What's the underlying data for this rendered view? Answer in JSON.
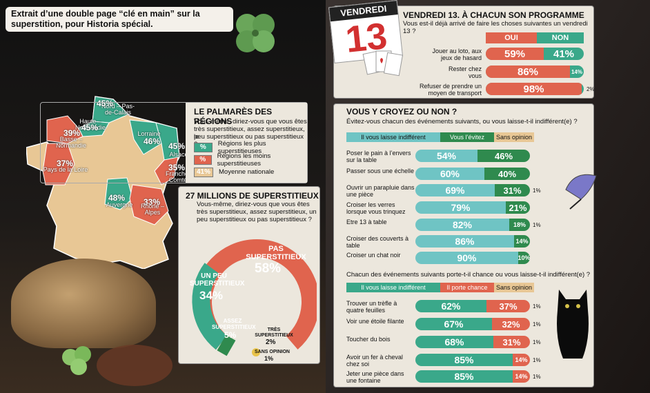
{
  "caption": {
    "line1": "Extrait d’une double page “clé en main” sur la",
    "line2": "superstition, pour Historia spécial."
  },
  "regions": {
    "title": "LE PALMARÈS DES RÉGIONS",
    "subtitle1": "Vous-même, diriez-vous que vous êtes",
    "subtitle2": "très superstitieux, assez superstitieux, le",
    "subtitle3": "peu superstitieux ou pas superstitieux ?",
    "legend": [
      {
        "swatch": "%",
        "label": "Régions les plus superstitieuses",
        "color": "#3aa88a"
      },
      {
        "swatch": "%",
        "label": "Régions les moins superstitieuses",
        "color": "#e0644e"
      },
      {
        "swatch": "41%",
        "label": "Moyenne nationale",
        "color": "#e8c795"
      }
    ],
    "items": [
      {
        "name": "Nord – Pas-de-Calais",
        "pct": "45%"
      },
      {
        "name": "Haute – Normandie",
        "pct": "45%"
      },
      {
        "name": "Basse – Normandie",
        "pct": "39%"
      },
      {
        "name": "Lorraine",
        "pct": "46%"
      },
      {
        "name": "Alsace",
        "pct": "45%"
      },
      {
        "name": "Pays de la Loire",
        "pct": "37%"
      },
      {
        "name": "Franche-Comté",
        "pct": "35%"
      },
      {
        "name": "Auvergne",
        "pct": "48%"
      },
      {
        "name": "Rhône – Alpes",
        "pct": "33%"
      }
    ]
  },
  "millions": {
    "title": "27 MILLIONS DE SUPERSTITIEUX",
    "subtitle1": "Vous-même, diriez-vous que vous êtes",
    "subtitle2": "très superstitieux, assez superstitieux, un",
    "subtitle3": "peu superstitieux ou pas superstitieux ?",
    "pas_label": "PAS SUPERSTITIEUX",
    "pas_pct": "58%",
    "peu_label": "UN PEU SUPERSTITIEUX",
    "peu_pct": "34%",
    "assez_label": "ASSEZ SUPERSTITIEUX",
    "assez_pct": "5%",
    "tres_label": "TRÈS SUPERSTITIEUX",
    "tres_pct": "2%",
    "sans_label": "SANS OPINION",
    "sans_pct": "1%"
  },
  "calendar": {
    "day": "VENDREDI",
    "num": "13"
  },
  "v13": {
    "title": "VENDREDI 13. À CHACUN SON PROGRAMME",
    "subtitle": "Vous est-il déjà arrivé de faire les choses suivantes un vendredi 13 ?",
    "oui": "OUI",
    "non": "NON",
    "rows": [
      {
        "label1": "Jouer au loto, aux",
        "label2": "jeux de hasard",
        "oui": "59%",
        "non": "41%",
        "oui_v": 59
      },
      {
        "label1": "Rester chez",
        "label2": "vous",
        "oui": "86%",
        "non": "14%",
        "oui_v": 86
      },
      {
        "label1": "Refuser de prendre un",
        "label2": "moyen de transport",
        "oui": "98%",
        "non": "2%",
        "oui_v": 98
      }
    ]
  },
  "croyez": {
    "title": "VOUS Y CROYEZ OU NON ?",
    "subtitle": "Évitez-vous chacun des événements  suivants, ou vous laisse-t-il indifférent(e) ?",
    "h1": "Il vous laisse indifférent",
    "h2": "Vous l’évitez",
    "h3": "Sans opinion",
    "rows": [
      {
        "label1": "Poser le pain à l’envers",
        "label2": "sur la table",
        "a": "54%",
        "b": "46%",
        "c": "",
        "av": 54,
        "bv": 46
      },
      {
        "label1": "Passer sous une échelle",
        "label2": "",
        "a": "60%",
        "b": "40%",
        "c": "",
        "av": 60,
        "bv": 40
      },
      {
        "label1": "Ouvrir un parapluie dans",
        "label2": "une pièce",
        "a": "69%",
        "b": "31%",
        "c": "1%",
        "av": 69,
        "bv": 31
      },
      {
        "label1": "Croiser les verres",
        "label2": "lorsque vous trinquez",
        "a": "79%",
        "b": "21%",
        "c": "",
        "av": 79,
        "bv": 21
      },
      {
        "label1": "Etre 13 à table",
        "label2": "",
        "a": "82%",
        "b": "18%",
        "c": "1%",
        "av": 82,
        "bv": 18
      },
      {
        "label1": "Croiser des couverts à",
        "label2": "table",
        "a": "86%",
        "b": "14%",
        "c": "",
        "av": 86,
        "bv": 14
      },
      {
        "label1": "Croiser un chat noir",
        "label2": "",
        "a": "90%",
        "b": "10%",
        "c": "",
        "av": 90,
        "bv": 10
      }
    ],
    "subtitle2": "Chacun des événements suivants porte-t-il chance ou vous laisse-t-il indifférent(e) ?",
    "g1": "Il vous laisse indifférent",
    "g2": "Il porte chance",
    "g3": "Sans opinion",
    "rows2": [
      {
        "label1": "Trouver un trèfle à",
        "label2": "quatre feuilles",
        "a": "62%",
        "b": "37%",
        "c": "1%",
        "av": 62,
        "bv": 37
      },
      {
        "label1": "Voir une étoile filante",
        "label2": "",
        "a": "67%",
        "b": "32%",
        "c": "1%",
        "av": 67,
        "bv": 32
      },
      {
        "label1": "Toucher du bois",
        "label2": "",
        "a": "68%",
        "b": "31%",
        "c": "1%",
        "av": 68,
        "bv": 31
      },
      {
        "label1": "Avoir un fer à cheval",
        "label2": "chez soi",
        "a": "85%",
        "b": "14%",
        "c": "1%",
        "av": 85,
        "bv": 14
      },
      {
        "label1": "Jeter une pièce dans",
        "label2": "une fontaine",
        "a": "85%",
        "b": "14%",
        "c": "1%",
        "av": 85,
        "bv": 14
      }
    ]
  },
  "colors": {
    "green": "#3aa88a",
    "teal": "#6fc4c4",
    "red": "#e0644e",
    "beige": "#e8c795",
    "darkgreen": "#2f8a4e"
  }
}
